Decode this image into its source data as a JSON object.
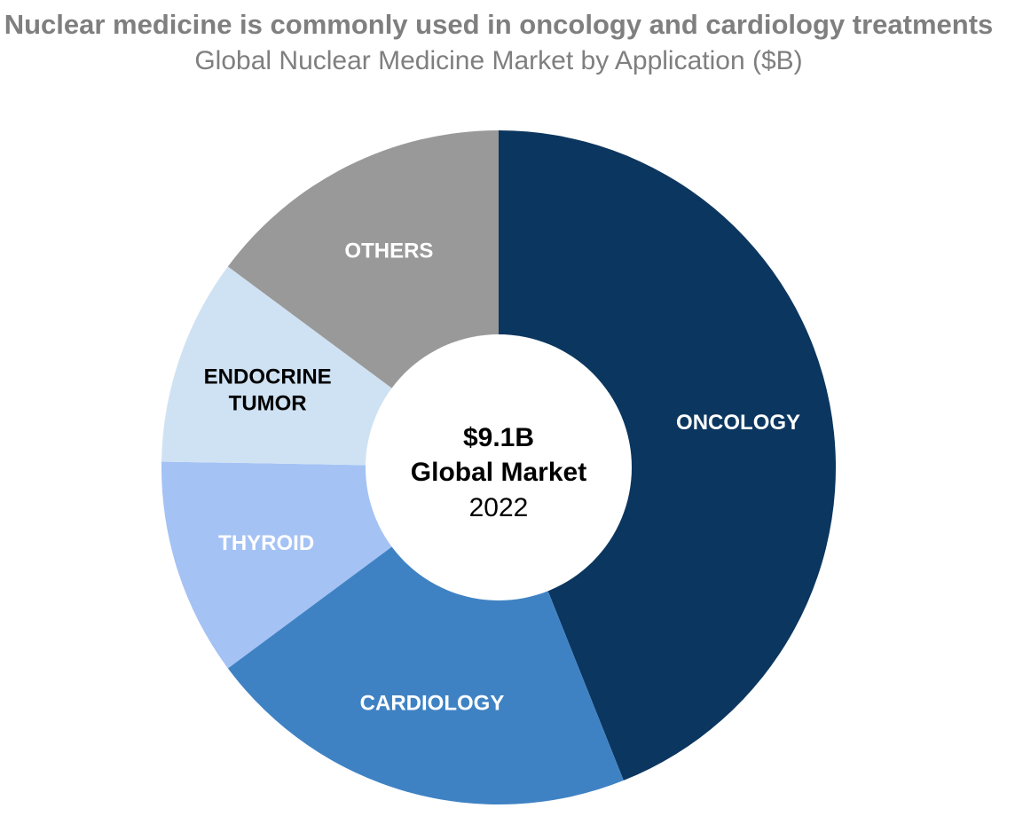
{
  "header": {
    "title": "Nuclear medicine is commonly used in oncology and cardiology treatments",
    "subtitle": "Global Nuclear Medicine Market by Application ($B)"
  },
  "center": {
    "value": "$9.1B",
    "label": "Global Market",
    "year": "2022"
  },
  "chart_data": {
    "type": "pie",
    "title": "Nuclear medicine is commonly used in oncology and cardiology treatments",
    "subtitle": "Global Nuclear Medicine Market by Application ($B)",
    "total": 9.1,
    "unit": "$B",
    "year": "2022",
    "slices": [
      {
        "label": "ONCOLOGY",
        "value": 4.0,
        "color": "#0b365f",
        "label_color": "#ffffff"
      },
      {
        "label": "CARDIOLOGY",
        "value": 1.9,
        "color": "#3f82c4",
        "label_color": "#ffffff"
      },
      {
        "label": "THYROID",
        "value": 0.95,
        "color": "#a4c2f4",
        "label_color": "#ffffff"
      },
      {
        "label": "ENDOCRINE\nTUMOR",
        "value": 0.9,
        "color": "#cfe2f3",
        "label_color": "#000000"
      },
      {
        "label": "OTHERS",
        "value": 1.35,
        "color": "#999999",
        "label_color": "#ffffff"
      }
    ],
    "legend": "none"
  }
}
